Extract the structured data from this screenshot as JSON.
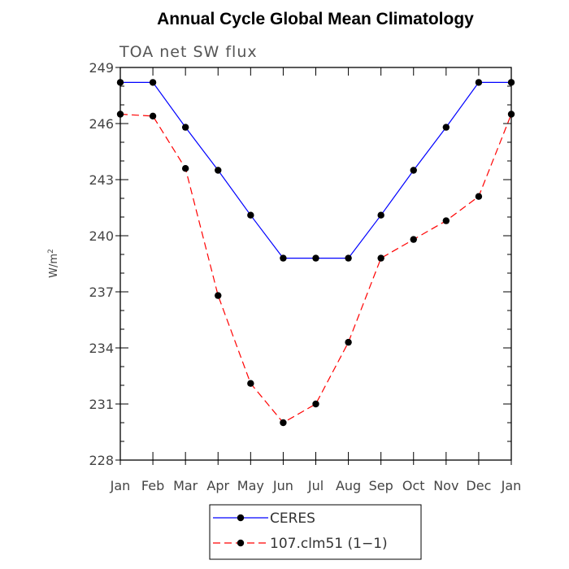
{
  "chart_data": {
    "type": "line",
    "title": "Annual Cycle Global Mean Climatology",
    "subtitle": "TOA net SW flux",
    "xlabel": "",
    "ylabel": "W/m",
    "ylabel_sup": "2",
    "categories": [
      "Jan",
      "Feb",
      "Mar",
      "Apr",
      "May",
      "Jun",
      "Jul",
      "Aug",
      "Sep",
      "Oct",
      "Nov",
      "Dec",
      "Jan"
    ],
    "yticks": [
      228,
      231,
      234,
      237,
      240,
      243,
      246,
      249
    ],
    "ylim": [
      228,
      249
    ],
    "legend_position": "bottom-center",
    "series": [
      {
        "name": "CERES",
        "color": "#0000ff",
        "dash": "solid",
        "values": [
          248.2,
          248.2,
          245.8,
          243.5,
          241.1,
          238.8,
          238.8,
          238.8,
          241.1,
          243.5,
          245.8,
          248.2,
          248.2
        ]
      },
      {
        "name": "107.clm51 (1−1)",
        "color": "#ff0000",
        "dash": "dashed",
        "values": [
          246.5,
          246.4,
          243.6,
          236.8,
          232.1,
          230.0,
          231.0,
          234.3,
          238.8,
          239.8,
          240.8,
          242.1,
          246.5
        ]
      }
    ]
  }
}
